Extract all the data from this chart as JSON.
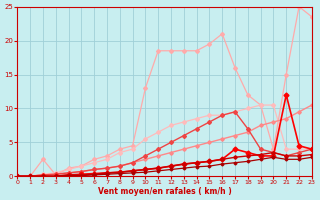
{
  "xlabel": "Vent moyen/en rafales ( km/h )",
  "xlim": [
    0,
    23
  ],
  "ylim": [
    0,
    25
  ],
  "xticks": [
    0,
    1,
    2,
    3,
    4,
    5,
    6,
    7,
    8,
    9,
    10,
    11,
    12,
    13,
    14,
    15,
    16,
    17,
    18,
    19,
    20,
    21,
    22,
    23
  ],
  "yticks": [
    0,
    5,
    10,
    15,
    20,
    25
  ],
  "bg_color": "#c8eef0",
  "grid_color": "#a0d0d8",
  "series": [
    {
      "x": [
        0,
        1,
        2,
        3,
        4,
        5,
        6,
        7,
        8,
        9,
        10,
        11,
        12,
        13,
        14,
        15,
        16,
        17,
        18,
        19,
        20,
        21,
        22,
        23
      ],
      "y": [
        0,
        0,
        2.5,
        0.2,
        1.2,
        1.5,
        2.5,
        3.0,
        4.0,
        4.5,
        13.0,
        18.5,
        18.5,
        18.5,
        18.5,
        19.5,
        21.0,
        16.0,
        12.0,
        10.5,
        4.0,
        15.0,
        25.0,
        23.5
      ],
      "color": "#ffaaaa",
      "linewidth": 0.9,
      "marker": "D",
      "markersize": 2.0
    },
    {
      "x": [
        0,
        1,
        2,
        3,
        4,
        5,
        6,
        7,
        8,
        9,
        10,
        11,
        12,
        13,
        14,
        15,
        16,
        17,
        18,
        19,
        20,
        21,
        22,
        23
      ],
      "y": [
        0,
        0,
        0.3,
        0.5,
        1.0,
        1.5,
        2.0,
        2.5,
        3.5,
        4.0,
        5.5,
        6.5,
        7.5,
        8.0,
        8.5,
        9.0,
        9.0,
        9.5,
        10.0,
        10.5,
        10.5,
        4.0,
        4.0,
        4.0
      ],
      "color": "#ffbbbb",
      "linewidth": 0.9,
      "marker": "D",
      "markersize": 2.0
    },
    {
      "x": [
        0,
        1,
        2,
        3,
        4,
        5,
        6,
        7,
        8,
        9,
        10,
        11,
        12,
        13,
        14,
        15,
        16,
        17,
        18,
        19,
        20,
        21,
        22,
        23
      ],
      "y": [
        0,
        0,
        0.2,
        0.3,
        0.5,
        0.7,
        1.0,
        1.2,
        1.5,
        2.0,
        2.5,
        3.0,
        3.5,
        4.0,
        4.5,
        5.0,
        5.5,
        6.0,
        6.5,
        7.5,
        8.0,
        8.5,
        9.5,
        10.5
      ],
      "color": "#ff8888",
      "linewidth": 1.0,
      "marker": "D",
      "markersize": 1.8
    },
    {
      "x": [
        0,
        1,
        2,
        3,
        4,
        5,
        6,
        7,
        8,
        9,
        10,
        11,
        12,
        13,
        14,
        15,
        16,
        17,
        18,
        19,
        20,
        21,
        22,
        23
      ],
      "y": [
        0,
        0,
        0.2,
        0.3,
        0.5,
        0.7,
        1.0,
        1.2,
        1.5,
        2.0,
        3.0,
        4.0,
        5.0,
        6.0,
        7.0,
        8.0,
        9.0,
        9.5,
        7.0,
        4.0,
        3.5,
        3.0,
        3.5,
        4.0
      ],
      "color": "#ee4444",
      "linewidth": 1.0,
      "marker": "D",
      "markersize": 2.0
    },
    {
      "x": [
        0,
        1,
        2,
        3,
        4,
        5,
        6,
        7,
        8,
        9,
        10,
        11,
        12,
        13,
        14,
        15,
        16,
        17,
        18,
        19,
        20,
        21,
        22,
        23
      ],
      "y": [
        0,
        0,
        0,
        0,
        0.2,
        0.3,
        0.4,
        0.5,
        0.6,
        0.8,
        1.0,
        1.2,
        1.5,
        1.8,
        2.0,
        2.2,
        2.5,
        4.0,
        3.5,
        3.0,
        3.0,
        12.0,
        4.5,
        4.0
      ],
      "color": "#ff0000",
      "linewidth": 1.2,
      "marker": "D",
      "markersize": 2.5
    },
    {
      "x": [
        0,
        1,
        2,
        3,
        4,
        5,
        6,
        7,
        8,
        9,
        10,
        11,
        12,
        13,
        14,
        15,
        16,
        17,
        18,
        19,
        20,
        21,
        22,
        23
      ],
      "y": [
        0,
        0,
        0,
        0,
        0.2,
        0.2,
        0.3,
        0.5,
        0.6,
        0.8,
        1.0,
        1.2,
        1.5,
        1.8,
        2.0,
        2.2,
        2.5,
        2.8,
        3.0,
        3.2,
        3.5,
        3.0,
        3.0,
        3.2
      ],
      "color": "#cc0000",
      "linewidth": 1.0,
      "marker": "D",
      "markersize": 1.8
    },
    {
      "x": [
        0,
        1,
        2,
        3,
        4,
        5,
        6,
        7,
        8,
        9,
        10,
        11,
        12,
        13,
        14,
        15,
        16,
        17,
        18,
        19,
        20,
        21,
        22,
        23
      ],
      "y": [
        0,
        0,
        0,
        0,
        0.1,
        0.1,
        0.2,
        0.3,
        0.4,
        0.5,
        0.6,
        0.8,
        1.0,
        1.2,
        1.4,
        1.5,
        1.8,
        2.0,
        2.2,
        2.5,
        2.8,
        2.5,
        2.5,
        2.8
      ],
      "color": "#aa0000",
      "linewidth": 0.9,
      "marker": "D",
      "markersize": 1.5
    }
  ]
}
